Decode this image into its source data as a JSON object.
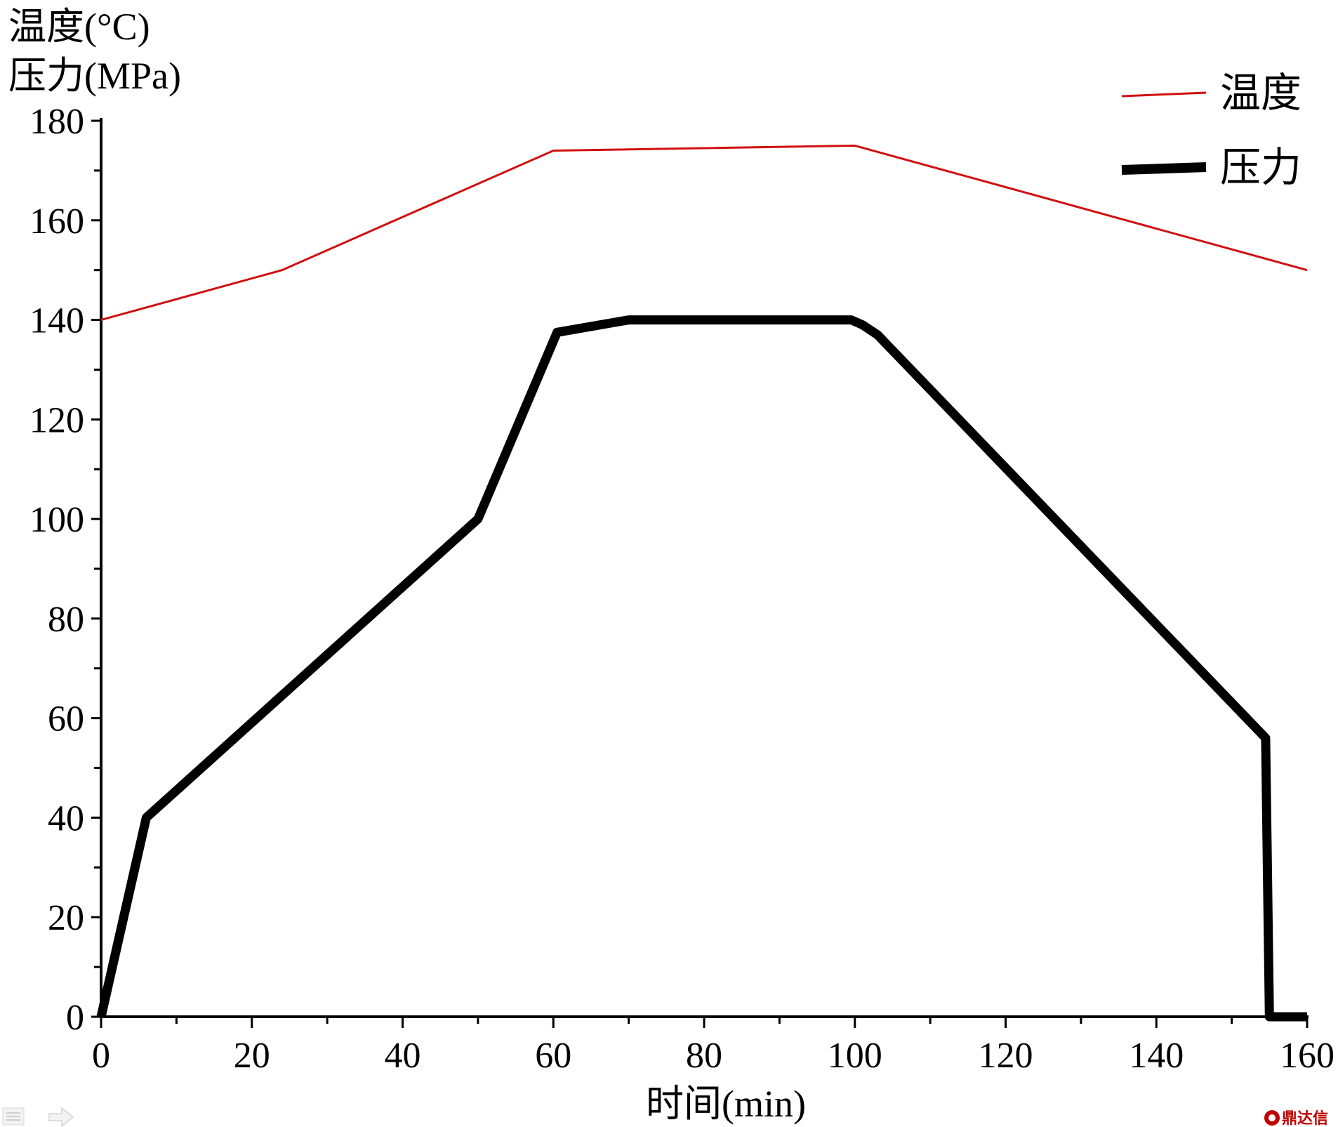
{
  "chart_data": {
    "type": "line",
    "ylabel_lines": [
      "温度(°C)",
      "压力(MPa)"
    ],
    "xlabel": "时间(min)",
    "xlim": [
      0,
      160
    ],
    "ylim": [
      0,
      180
    ],
    "x_ticks": [
      0,
      20,
      40,
      60,
      80,
      100,
      120,
      140,
      160
    ],
    "y_ticks": [
      0,
      20,
      40,
      60,
      80,
      100,
      120,
      140,
      160,
      180
    ],
    "grid": false,
    "legend_position": "top-right",
    "series": [
      {
        "name": "温度",
        "color": "#d01010",
        "points": [
          [
            0,
            140
          ],
          [
            24,
            150
          ],
          [
            60,
            174
          ],
          [
            100,
            175
          ],
          [
            160,
            150
          ]
        ]
      },
      {
        "name": "压力",
        "color": "#000000",
        "points": [
          [
            0,
            0
          ],
          [
            6,
            40
          ],
          [
            50,
            100
          ],
          [
            60.5,
            137.5
          ],
          [
            70,
            140
          ],
          [
            99.5,
            140
          ],
          [
            101,
            139
          ],
          [
            103,
            137
          ],
          [
            154.5,
            56
          ],
          [
            155,
            0
          ],
          [
            160,
            0
          ]
        ]
      }
    ]
  },
  "watermark": {
    "text": "鼎达信"
  },
  "ui": {
    "left_icon": "list-icon",
    "right_icon": "arrow-right-icon"
  }
}
